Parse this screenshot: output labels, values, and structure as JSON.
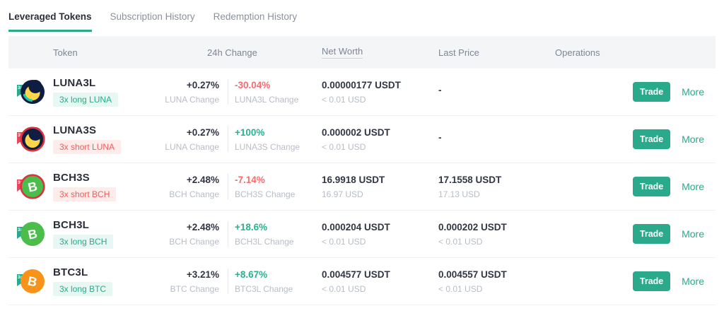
{
  "tabs": [
    {
      "label": "Leveraged Tokens",
      "active": true
    },
    {
      "label": "Subscription History",
      "active": false
    },
    {
      "label": "Redemption History",
      "active": false
    }
  ],
  "ribbon_label": "3x",
  "table": {
    "columns": [
      "Token",
      "24h Change",
      "Net Worth",
      "Last Price",
      "Operations"
    ],
    "rows": [
      {
        "token": "LUNA3L",
        "coin": "luna",
        "direction": "long",
        "badge": "3x long LUNA",
        "base_change": "+0.27%",
        "base_change_label": "LUNA Change",
        "token_change": "-30.04%",
        "token_change_trend": "down",
        "token_change_label": "LUNA3L Change",
        "net_worth": "0.00000177 USDT",
        "net_worth_usd": "< 0.01 USD",
        "last_price": "-",
        "last_price_usd": ""
      },
      {
        "token": "LUNA3S",
        "coin": "luna",
        "direction": "short",
        "badge": "3x short LUNA",
        "base_change": "+0.27%",
        "base_change_label": "LUNA Change",
        "token_change": "+100%",
        "token_change_trend": "up",
        "token_change_label": "LUNA3S Change",
        "net_worth": "0.000002 USDT",
        "net_worth_usd": "< 0.01 USD",
        "last_price": "-",
        "last_price_usd": ""
      },
      {
        "token": "BCH3S",
        "coin": "bch",
        "direction": "short",
        "badge": "3x short BCH",
        "base_change": "+2.48%",
        "base_change_label": "BCH Change",
        "token_change": "-7.14%",
        "token_change_trend": "down",
        "token_change_label": "BCH3S Change",
        "net_worth": "16.9918 USDT",
        "net_worth_usd": "16.97 USD",
        "last_price": "17.1558 USDT",
        "last_price_usd": "17.13 USD"
      },
      {
        "token": "BCH3L",
        "coin": "bch",
        "direction": "long",
        "badge": "3x long BCH",
        "base_change": "+2.48%",
        "base_change_label": "BCH Change",
        "token_change": "+18.6%",
        "token_change_trend": "up",
        "token_change_label": "BCH3L Change",
        "net_worth": "0.000204 USDT",
        "net_worth_usd": "< 0.01 USD",
        "last_price": "0.000202 USDT",
        "last_price_usd": "< 0.01 USD"
      },
      {
        "token": "BTC3L",
        "coin": "btc",
        "direction": "long",
        "badge": "3x long BTC",
        "base_change": "+3.21%",
        "base_change_label": "BTC Change",
        "token_change": "+8.67%",
        "token_change_trend": "up",
        "token_change_label": "BTC3L Change",
        "net_worth": "0.004577 USDT",
        "net_worth_usd": "< 0.01 USD",
        "last_price": "0.004557 USDT",
        "last_price_usd": "< 0.01 USD"
      }
    ]
  },
  "operations": {
    "trade": "Trade",
    "more": "More"
  },
  "colors": {
    "accent": "#2aa98b",
    "up": "#27b190",
    "down": "#f56c71",
    "short_badge_text": "#f05c5c",
    "short_badge_bg": "#fdecea",
    "long_badge_bg": "#e7f7f1",
    "header_bg": "#f4f5f6",
    "luna_navy": "#101d42",
    "luna_yellow": "#ffd649",
    "luna_teal": "#1ec9a6",
    "bch_green": "#4bbd4b",
    "btc_orange": "#f7931a",
    "short_ring": "#d8333f"
  }
}
